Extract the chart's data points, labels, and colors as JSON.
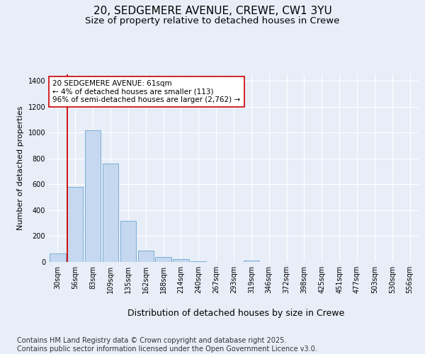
{
  "title_line1": "20, SEDGEMERE AVENUE, CREWE, CW1 3YU",
  "title_line2": "Size of property relative to detached houses in Crewe",
  "xlabel": "Distribution of detached houses by size in Crewe",
  "ylabel": "Number of detached properties",
  "categories": [
    "30sqm",
    "56sqm",
    "83sqm",
    "109sqm",
    "135sqm",
    "162sqm",
    "188sqm",
    "214sqm",
    "240sqm",
    "267sqm",
    "293sqm",
    "319sqm",
    "346sqm",
    "372sqm",
    "398sqm",
    "425sqm",
    "451sqm",
    "477sqm",
    "503sqm",
    "530sqm",
    "556sqm"
  ],
  "values": [
    65,
    580,
    1020,
    760,
    320,
    85,
    40,
    20,
    8,
    0,
    0,
    10,
    0,
    0,
    0,
    0,
    0,
    0,
    0,
    0,
    0
  ],
  "bar_color": "#c5d8f0",
  "bar_edge_color": "#7aadd4",
  "vline_color": "#cc0000",
  "annotation_text": "20 SEDGEMERE AVENUE: 61sqm\n← 4% of detached houses are smaller (113)\n96% of semi-detached houses are larger (2,762) →",
  "annotation_box_facecolor": "#ffffff",
  "annotation_box_edgecolor": "#cc0000",
  "ylim": [
    0,
    1450
  ],
  "yticks": [
    0,
    200,
    400,
    600,
    800,
    1000,
    1200,
    1400
  ],
  "bg_color": "#e8eef8",
  "plot_bg_color": "#e8eef8",
  "footer": "Contains HM Land Registry data © Crown copyright and database right 2025.\nContains public sector information licensed under the Open Government Licence v3.0.",
  "title_fontsize": 11,
  "subtitle_fontsize": 9.5,
  "ylabel_fontsize": 8,
  "xlabel_fontsize": 9,
  "tick_fontsize": 7,
  "annotation_fontsize": 7.5,
  "footer_fontsize": 7
}
